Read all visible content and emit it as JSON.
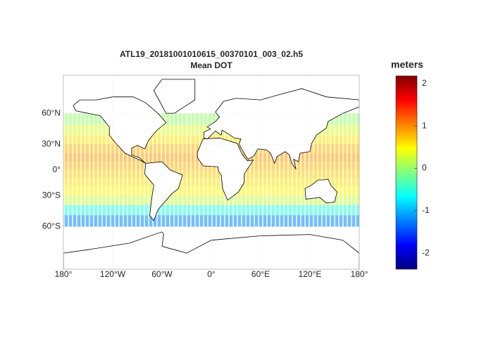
{
  "chart_data": {
    "type": "map",
    "title": "ATL19_20181001010615_00370101_003_02.h5",
    "subtitle": "Mean DOT",
    "colorbar_label": "meters",
    "xlim": [
      -180,
      180
    ],
    "ylim": [
      -86,
      84
    ],
    "xticks": [
      {
        "value": -180,
        "label": "180°"
      },
      {
        "value": -120,
        "label": "120°W"
      },
      {
        "value": -60,
        "label": "60°W"
      },
      {
        "value": 0,
        "label": "0°"
      },
      {
        "value": 60,
        "label": "60°E"
      },
      {
        "value": 120,
        "label": "120°E"
      },
      {
        "value": 180,
        "label": "180°"
      }
    ],
    "yticks": [
      {
        "value": 60,
        "label": "60°N"
      },
      {
        "value": 30,
        "label": "30°N"
      },
      {
        "value": 0,
        "label": "0°"
      },
      {
        "value": -30,
        "label": "30°S"
      },
      {
        "value": -60,
        "label": "60°S"
      }
    ],
    "clim": [
      -2.38,
      2.18
    ],
    "cticks": [
      -2,
      -1,
      0,
      1,
      2
    ],
    "colormap": "jet",
    "lat": [
      55,
      45,
      35,
      25,
      15,
      5,
      -5,
      -15,
      -25,
      -35,
      -45,
      -55
    ],
    "values": [
      0.0,
      0.3,
      0.6,
      0.8,
      0.9,
      0.8,
      0.7,
      0.6,
      0.5,
      0.2,
      -0.5,
      -1.2
    ]
  }
}
